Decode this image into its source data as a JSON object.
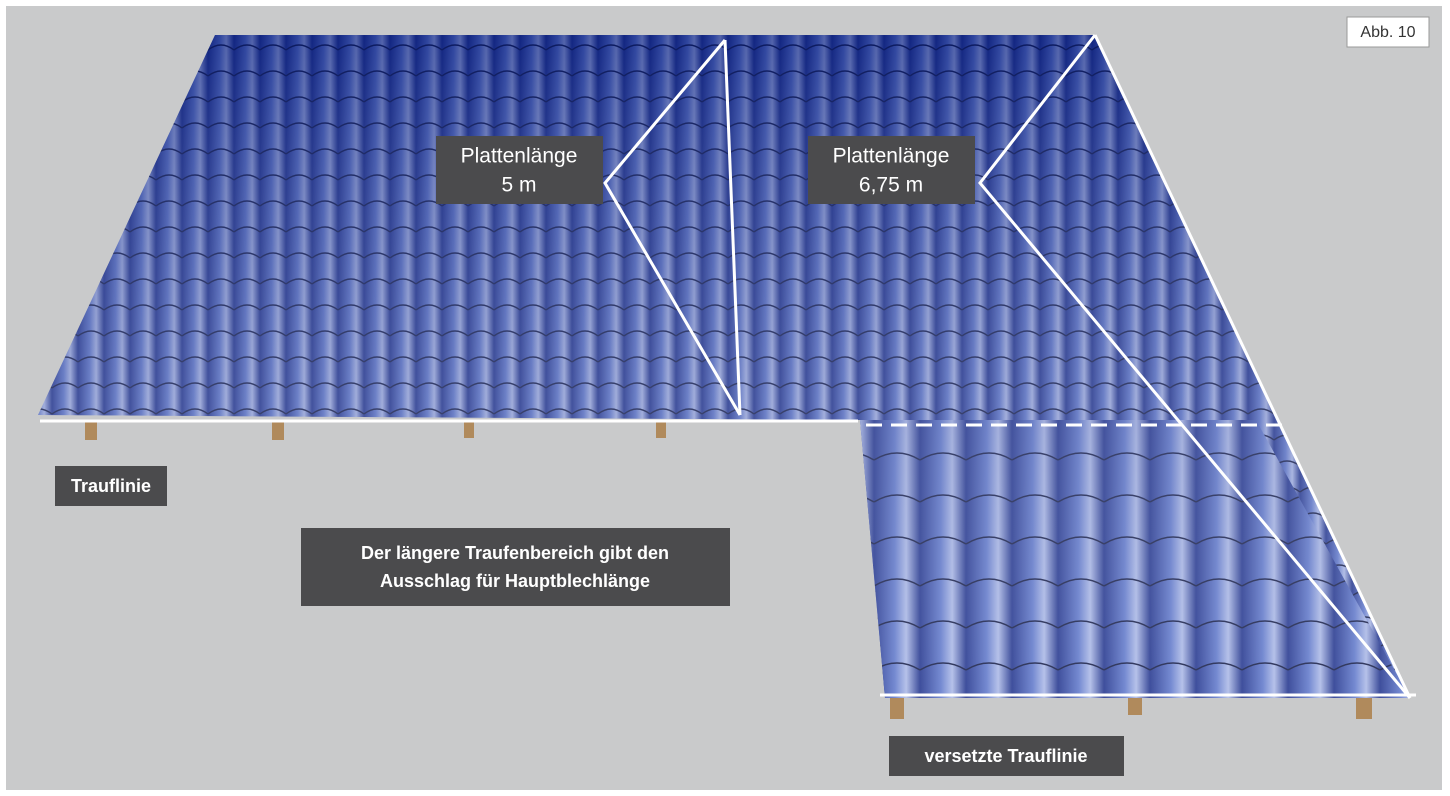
{
  "figure_label": "Abb. 10",
  "callouts": [
    {
      "lines": [
        "Plattenlänge",
        "5 m"
      ]
    },
    {
      "lines": [
        "Plattenlänge",
        "6,75 m"
      ]
    }
  ],
  "labels": {
    "eave": "Trauflinie",
    "note": [
      "Der längere Traufenbereich gibt den",
      "Ausschlag für Hauptblechlänge"
    ],
    "offset_eave": "versetzte Trauflinie"
  }
}
